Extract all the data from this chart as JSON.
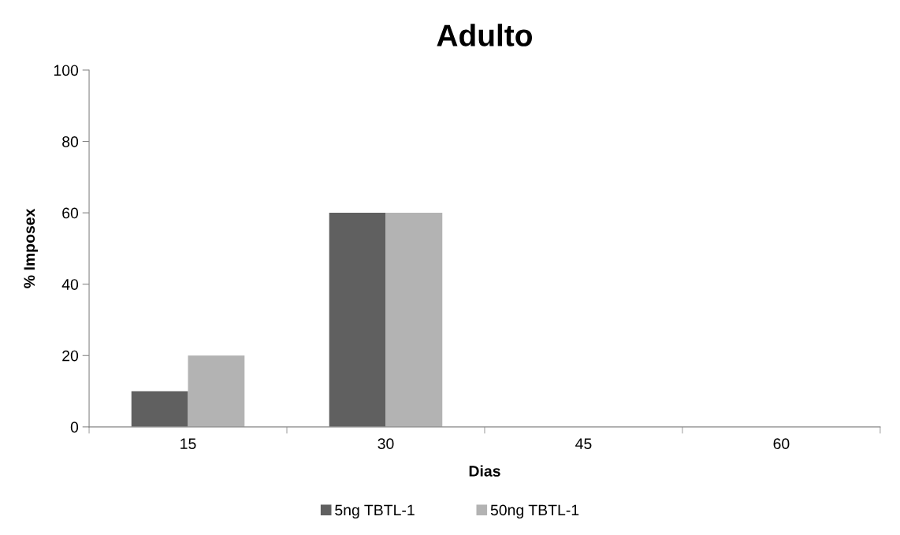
{
  "chart_data": {
    "type": "bar",
    "title": "Adulto",
    "xlabel": "Dias",
    "ylabel": "% Imposex",
    "categories": [
      "15",
      "30",
      "45",
      "60"
    ],
    "series": [
      {
        "name": "5ng TBTL-1",
        "color": "#606060",
        "values": [
          10,
          60,
          0,
          0
        ]
      },
      {
        "name": "50ng TBTL-1",
        "color": "#b3b3b3",
        "values": [
          20,
          60,
          0,
          0
        ]
      }
    ],
    "ylim": [
      0,
      100
    ],
    "yticks": [
      0,
      20,
      40,
      60,
      80,
      100
    ],
    "grid": false,
    "legend": "bottom"
  }
}
